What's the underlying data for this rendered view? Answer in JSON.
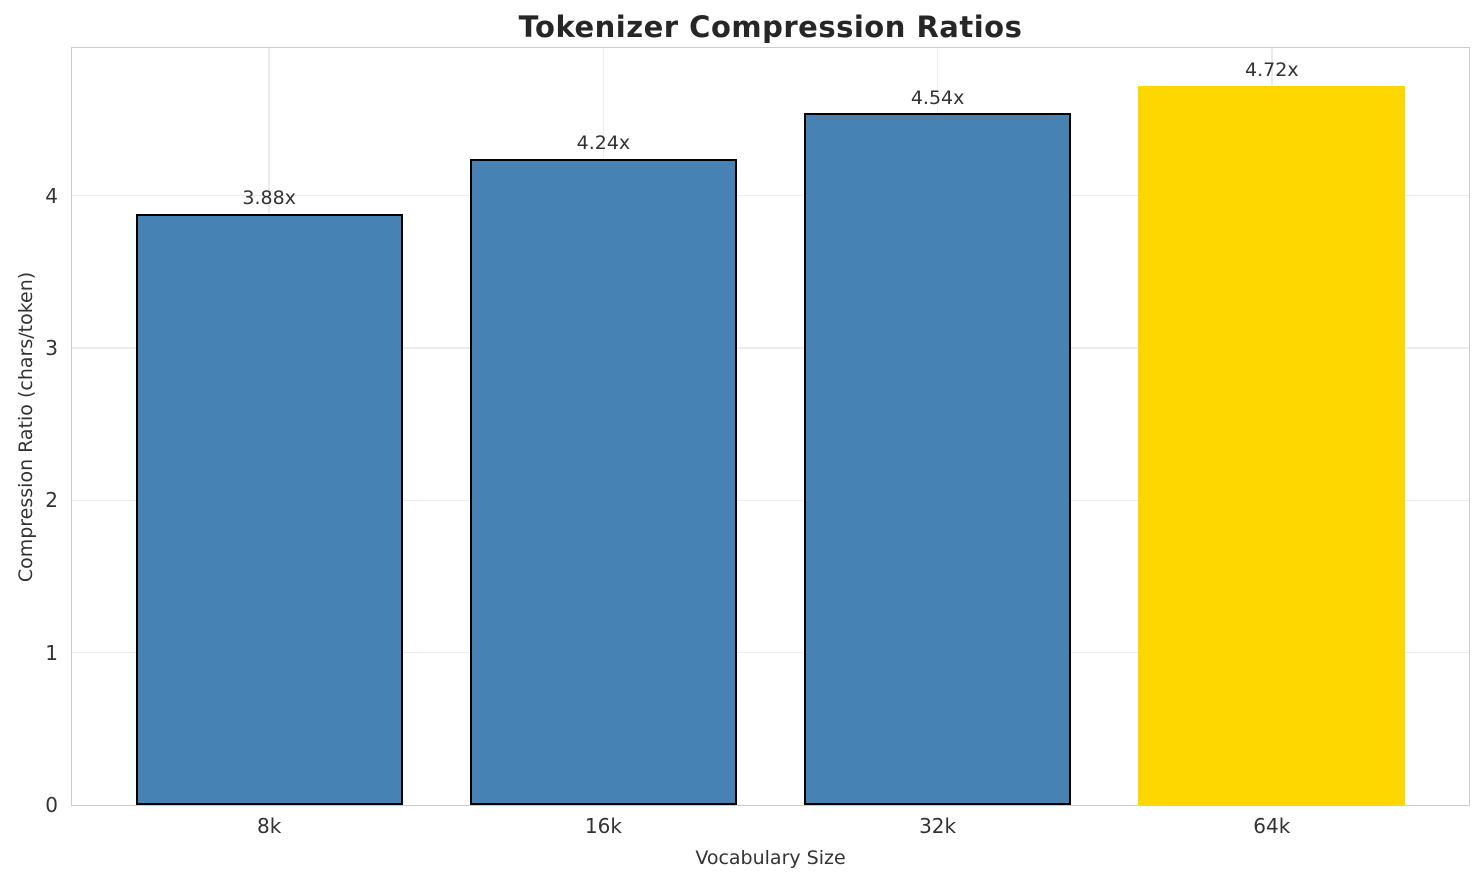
{
  "chart_data": {
    "type": "bar",
    "title": "Tokenizer Compression Ratios",
    "xlabel": "Vocabulary Size",
    "ylabel": "Compression Ratio (chars/token)",
    "categories": [
      "8k",
      "16k",
      "32k",
      "64k"
    ],
    "values": [
      3.88,
      4.24,
      4.54,
      4.72
    ],
    "bar_labels": [
      "3.88x",
      "4.24x",
      "4.54x",
      "4.72x"
    ],
    "bar_colors": [
      "#4682b4",
      "#4682b4",
      "#4682b4",
      "#ffd700"
    ],
    "bar_edge_colors": [
      "#000000",
      "#000000",
      "#000000",
      "none"
    ],
    "yticks": [
      0,
      1,
      2,
      3,
      4
    ],
    "ytick_labels": [
      "0",
      "1",
      "2",
      "3",
      "4"
    ],
    "ylim": [
      0,
      4.97
    ],
    "xlim": [
      -0.59,
      3.59
    ],
    "bar_width": 0.8,
    "grid": true,
    "legend_position": "none",
    "colors": {
      "default_bar": "#4682b4",
      "highlight_bar": "#ffd700",
      "bar_edge": "#000000",
      "grid": "#ececec",
      "spine": "#cccccc",
      "title_text": "#262626",
      "tick_text": "#333333",
      "background": "#ffffff"
    }
  }
}
